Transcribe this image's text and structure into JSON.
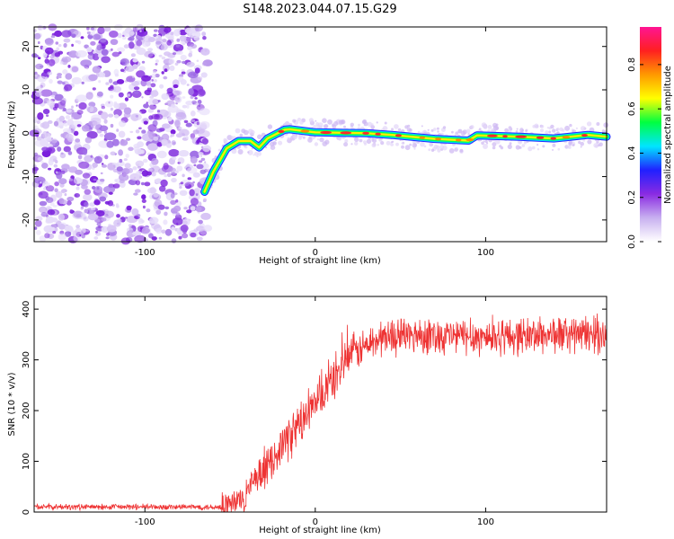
{
  "title": "S148.2023.044.07.15.G29",
  "chart_data": [
    {
      "type": "heatmap",
      "xlabel": "Height of straight line (km)",
      "ylabel": "Frequency (Hz)",
      "xlim": [
        -165,
        171
      ],
      "ylim": [
        -25,
        24.5
      ],
      "x_ticks": [
        -100,
        0,
        100
      ],
      "x_tick_labels": [
        "-100",
        "0",
        "100"
      ],
      "y_ticks": [
        -20,
        -10,
        0,
        10,
        20
      ],
      "y_tick_labels": [
        "-20",
        "-10",
        "0",
        "10",
        "20"
      ],
      "noise_region_x": [
        -165,
        -63
      ],
      "ridge": {
        "x": [
          -65,
          -60,
          -52,
          -45,
          -38,
          -33,
          -28,
          -18,
          -15,
          0,
          30,
          45,
          70,
          90,
          95,
          120,
          140,
          160,
          171
        ],
        "y": [
          -13.5,
          -9,
          -3.5,
          -1.8,
          -1.8,
          -3.3,
          -1.2,
          0.8,
          0.9,
          0.2,
          0,
          -0.4,
          -1.3,
          -1.7,
          -0.5,
          -0.8,
          -1.2,
          -0.4,
          -0.8
        ]
      },
      "colorbar": {
        "label": "Normalized spectral amplitude",
        "range": [
          0,
          0.97
        ],
        "ticks": [
          0.0,
          0.2,
          0.4,
          0.6,
          0.8
        ],
        "tick_labels": [
          "0.0",
          "0.2",
          "0.4",
          "0.6",
          "0.8"
        ],
        "colors": [
          "#ffffff",
          "#c8b0f0",
          "#8a2be2",
          "#2020ff",
          "#00e5ff",
          "#00ff40",
          "#ffff00",
          "#ff9900",
          "#ff2020",
          "#ff1493"
        ]
      }
    },
    {
      "type": "line",
      "xlabel": "Height of straight line (km)",
      "ylabel": "SNR (10 * v/v)",
      "xlim": [
        -165,
        171
      ],
      "ylim": [
        0,
        425
      ],
      "x_ticks": [
        -100,
        0,
        100
      ],
      "x_tick_labels": [
        "-100",
        "0",
        "100"
      ],
      "y_ticks": [
        0,
        100,
        200,
        300,
        400
      ],
      "y_tick_labels": [
        "0",
        "100",
        "200",
        "300",
        "400"
      ],
      "series": [
        {
          "name": "SNR",
          "color": "#ee3333",
          "trend_x": [
            -165,
            -55,
            -45,
            -30,
            -20,
            0,
            10,
            20,
            40,
            60,
            100,
            140,
            171
          ],
          "trend_y": [
            10,
            10,
            20,
            80,
            130,
            210,
            260,
            310,
            345,
            350,
            345,
            350,
            350
          ]
        }
      ]
    }
  ]
}
